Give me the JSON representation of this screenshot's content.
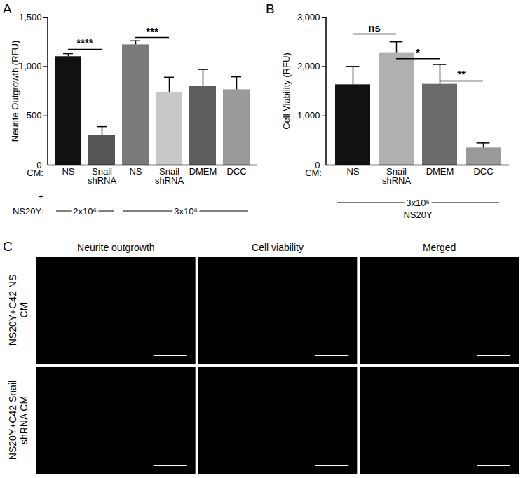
{
  "chart_data": [
    {
      "type": "bar",
      "title": "A",
      "y_label": "Neurite Outgrowth (RFU)",
      "category_row_label": "CM:",
      "categories": [
        "NS",
        "Snail shRNA",
        "NS",
        "Snail shRNA",
        "DMEM",
        "DCC"
      ],
      "values": [
        1100,
        300,
        1220,
        740,
        800,
        765
      ],
      "errors": [
        30,
        90,
        40,
        150,
        170,
        130
      ],
      "colors": [
        "#111111",
        "#555555",
        "#7a7a7a",
        "#c8c8c8",
        "#5e5e5e",
        "#9a9a9a"
      ],
      "ylim": [
        0,
        1500
      ],
      "yticks": [
        0,
        500,
        1000,
        1500
      ],
      "significance": [
        {
          "from": 0,
          "to": 1,
          "y": 1170,
          "label": "****"
        },
        {
          "from": 2,
          "to": 3,
          "y": 1290,
          "label": "***"
        }
      ],
      "combine_symbol": "+",
      "group_row_label": "NS20Y:",
      "groups": [
        {
          "from": 0,
          "to": 1,
          "label": "2x10⁶"
        },
        {
          "from": 2,
          "to": 5,
          "label": "3x10⁶"
        }
      ]
    },
    {
      "type": "bar",
      "title": "B",
      "y_label": "Cell Viability (RFU)",
      "category_row_label": "CM:",
      "categories": [
        "NS",
        "Snail shRNA",
        "DMEM",
        "DCC"
      ],
      "values": [
        1630,
        2280,
        1640,
        350
      ],
      "errors": [
        370,
        220,
        400,
        100
      ],
      "colors": [
        "#111111",
        "#b0b0b0",
        "#6a6a6a",
        "#999999"
      ],
      "ylim": [
        0,
        3000
      ],
      "yticks": [
        0,
        1000,
        2000,
        3000
      ],
      "significance": [
        {
          "from": 0,
          "to": 1,
          "y": 2650,
          "label": "ns"
        },
        {
          "from": 1,
          "to": 2,
          "y": 2150,
          "label": "*"
        },
        {
          "from": 2,
          "to": 3,
          "y": 1700,
          "label": "**"
        }
      ],
      "groups": [
        {
          "from": 0,
          "to": 3,
          "label": "3x10⁶"
        }
      ],
      "group_caption": "NS20Y"
    }
  ],
  "image_panel": {
    "title": "C",
    "columns": [
      "Neurite outgrowth",
      "Cell viability",
      "Merged"
    ],
    "rows": [
      [
        "NS20Y+C42 NS",
        "CM"
      ],
      [
        "NS20Y+C42 Snail",
        "shRNA CM"
      ]
    ]
  }
}
